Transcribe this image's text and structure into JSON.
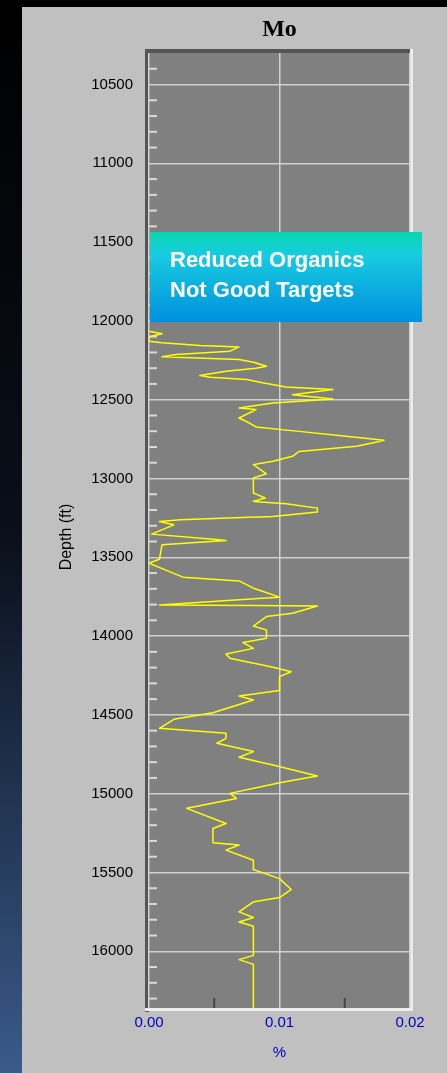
{
  "chart_data": {
    "type": "line",
    "title": "Mo",
    "xlabel": "%",
    "ylabel": "Depth (ft)",
    "annotations": [
      "Reduced Organics\nNot Good Targets"
    ],
    "xlim": [
      0,
      0.02
    ],
    "ylim": [
      16360,
      10300
    ],
    "xticks": [
      {
        "value": 0,
        "label": "0.00"
      },
      {
        "value": 0.005,
        "label": null
      },
      {
        "value": 0.01,
        "label": "0.01"
      },
      {
        "value": 0.015,
        "label": null
      },
      {
        "value": 0.02,
        "label": "0.02"
      }
    ],
    "yticks": [
      {
        "value": 10400,
        "label": null
      },
      10500,
      {
        "value": 10600,
        "label": null
      },
      {
        "value": 10700,
        "label": null
      },
      {
        "value": 10800,
        "label": null
      },
      {
        "value": 10900,
        "label": null
      },
      11000,
      {
        "value": 11100,
        "label": null
      },
      {
        "value": 11200,
        "label": null
      },
      {
        "value": 11300,
        "label": null
      },
      {
        "value": 11400,
        "label": null
      },
      11500,
      {
        "value": 11600,
        "label": null
      },
      {
        "value": 11700,
        "label": null
      },
      {
        "value": 11800,
        "label": null
      },
      {
        "value": 11900,
        "label": null
      },
      12000,
      {
        "value": 12100,
        "label": null
      },
      {
        "value": 12200,
        "label": null
      },
      {
        "value": 12300,
        "label": null
      },
      {
        "value": 12400,
        "label": null
      },
      12500,
      {
        "value": 12600,
        "label": null
      },
      {
        "value": 12700,
        "label": null
      },
      {
        "value": 12800,
        "label": null
      },
      {
        "value": 12900,
        "label": null
      },
      13000,
      {
        "value": 13100,
        "label": null
      },
      {
        "value": 13200,
        "label": null
      },
      {
        "value": 13300,
        "label": null
      },
      {
        "value": 13400,
        "label": null
      },
      13500,
      {
        "value": 13600,
        "label": null
      },
      {
        "value": 13700,
        "label": null
      },
      {
        "value": 13800,
        "label": null
      },
      {
        "value": 13900,
        "label": null
      },
      14000,
      {
        "value": 14100,
        "label": null
      },
      {
        "value": 14200,
        "label": null
      },
      {
        "value": 14300,
        "label": null
      },
      {
        "value": 14400,
        "label": null
      },
      14500,
      {
        "value": 14600,
        "label": null
      },
      {
        "value": 14700,
        "label": null
      },
      {
        "value": 14800,
        "label": null
      },
      {
        "value": 14900,
        "label": null
      },
      15000,
      {
        "value": 15100,
        "label": null
      },
      {
        "value": 15200,
        "label": null
      },
      {
        "value": 15300,
        "label": null
      },
      {
        "value": 15400,
        "label": null
      },
      15500,
      {
        "value": 15600,
        "label": null
      },
      {
        "value": 15700,
        "label": null
      },
      {
        "value": 15800,
        "label": null
      },
      {
        "value": 15900,
        "label": null
      },
      16000,
      {
        "value": 16100,
        "label": null
      },
      {
        "value": 16200,
        "label": null
      },
      {
        "value": 16300,
        "label": null
      }
    ],
    "grid": true,
    "legend": false,
    "series": [
      {
        "color": "#ffff00",
        "x": [
          0.0,
          0.001,
          0.0,
          0.0,
          0.001,
          0.0039,
          0.0069,
          0.0062,
          0.0021,
          0.001,
          0.0069,
          0.008,
          0.009,
          0.0082,
          0.0059,
          0.0039,
          0.0047,
          0.0075,
          0.0087,
          0.0105,
          0.0141,
          0.011,
          0.0141,
          0.0095,
          0.0069,
          0.0082,
          0.0069,
          0.0077,
          0.0082,
          0.0115,
          0.0151,
          0.018,
          0.0171,
          0.0159,
          0.0115,
          0.011,
          0.0095,
          0.008,
          0.009,
          0.008,
          0.008,
          0.0089,
          0.008,
          0.0105,
          0.0129,
          0.0129,
          0.0095,
          0.0024,
          0.0008,
          0.0019,
          0.0002,
          0.0049,
          0.0059,
          0.001,
          0.0008,
          0.0,
          0.0026,
          0.0069,
          0.008,
          0.01,
          0.0069,
          0.0008,
          0.0129,
          0.011,
          0.009,
          0.008,
          0.009,
          0.009,
          0.0072,
          0.008,
          0.0059,
          0.0062,
          0.0095,
          0.0109,
          0.01,
          0.01,
          0.0069,
          0.008,
          0.0049,
          0.0019,
          0.0008,
          0.0059,
          0.0059,
          0.0052,
          0.008,
          0.0069,
          0.0095,
          0.0129,
          0.01,
          0.0062,
          0.0067,
          0.0029,
          0.0059,
          0.0049,
          0.0049,
          0.0069,
          0.0059,
          0.008,
          0.008,
          0.01,
          0.0109,
          0.01,
          0.008,
          0.0069,
          0.008,
          0.0069,
          0.008,
          0.008,
          0.0069,
          0.008,
          0.008
        ],
        "values": [
          12065,
          12082,
          12101,
          12129,
          12139,
          12156,
          12165,
          12192,
          12213,
          12228,
          12245,
          12262,
          12288,
          12300,
          12319,
          12347,
          12357,
          12372,
          12393,
          12419,
          12436,
          12468,
          12495,
          12521,
          12552,
          12563,
          12616,
          12648,
          12673,
          12701,
          12732,
          12758,
          12775,
          12796,
          12828,
          12859,
          12891,
          12912,
          12970,
          12997,
          13092,
          13124,
          13145,
          13160,
          13188,
          13213,
          13241,
          13262,
          13273,
          13294,
          13353,
          13385,
          13393,
          13421,
          13512,
          13537,
          13626,
          13650,
          13696,
          13753,
          13770,
          13802,
          13809,
          13855,
          13876,
          13936,
          13961,
          14014,
          14041,
          14078,
          14114,
          14141,
          14198,
          14226,
          14257,
          14346,
          14380,
          14405,
          14486,
          14528,
          14585,
          14617,
          14649,
          14680,
          14733,
          14769,
          14818,
          14888,
          14930,
          14998,
          15030,
          15093,
          15189,
          15221,
          15312,
          15326,
          15358,
          15422,
          15481,
          15539,
          15608,
          15659,
          15687,
          15750,
          15786,
          15814,
          15841,
          16026,
          16053,
          16083,
          16360
        ]
      }
    ]
  }
}
